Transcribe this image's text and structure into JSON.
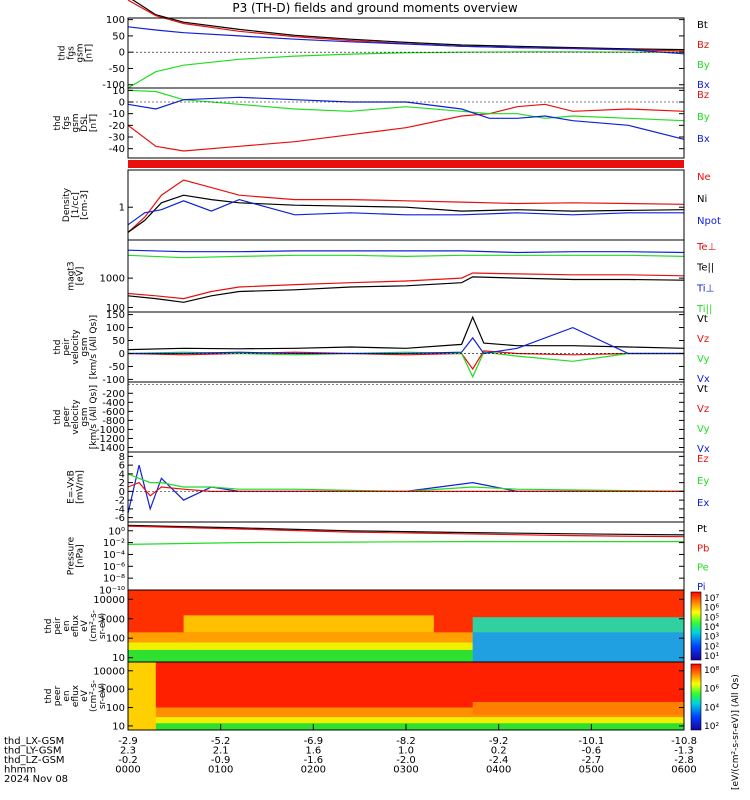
{
  "title": "P3 (TH-D) fields and ground moments overview",
  "colors": {
    "black": "#000000",
    "red": "#e8100e",
    "green": "#22dd22",
    "blue": "#1020d8"
  },
  "chart_data": [
    {
      "type": "line",
      "ylabel": [
        "thd",
        "fgs",
        "gsm",
        "[nT]"
      ],
      "ylim": [
        -110,
        105
      ],
      "yticks": [
        -100,
        -50,
        0,
        50,
        100
      ],
      "legend": [
        {
          "name": "Bt",
          "color": "black"
        },
        {
          "name": "Bz",
          "color": "red"
        },
        {
          "name": "By",
          "color": "green"
        },
        {
          "name": "Bx",
          "color": "blue"
        }
      ],
      "series": [
        {
          "name": "Bt",
          "color": "black",
          "x": [
            0,
            0.05,
            0.1,
            0.2,
            0.3,
            0.4,
            0.5,
            0.6,
            0.7,
            0.8,
            0.9,
            1.0
          ],
          "y": [
            170,
            115,
            92,
            70,
            52,
            40,
            30,
            22,
            18,
            14,
            10,
            8
          ]
        },
        {
          "name": "Bz",
          "color": "red",
          "x": [
            0,
            0.05,
            0.1,
            0.2,
            0.3,
            0.4,
            0.5,
            0.6,
            0.7,
            0.8,
            0.9,
            1.0
          ],
          "y": [
            160,
            112,
            88,
            64,
            48,
            36,
            26,
            18,
            14,
            11,
            7,
            4
          ]
        },
        {
          "name": "By",
          "color": "green",
          "x": [
            0,
            0.05,
            0.1,
            0.2,
            0.3,
            0.4,
            0.5,
            0.6,
            0.7,
            0.8,
            0.9,
            1.0
          ],
          "y": [
            -110,
            -60,
            -40,
            -22,
            -12,
            -6,
            -2,
            0,
            1,
            1,
            0,
            0
          ]
        },
        {
          "name": "Bx",
          "color": "blue",
          "x": [
            0,
            0.05,
            0.1,
            0.2,
            0.3,
            0.4,
            0.5,
            0.6,
            0.7,
            0.8,
            0.9,
            1.0
          ],
          "y": [
            78,
            68,
            60,
            50,
            40,
            32,
            25,
            18,
            14,
            12,
            8,
            -5
          ]
        }
      ]
    },
    {
      "type": "line",
      "ylabel": [
        "thd",
        "fgs",
        "gsm",
        "DSL",
        "[nT]"
      ],
      "ylim": [
        -48,
        12
      ],
      "yticks": [
        -40,
        -30,
        -20,
        -10,
        0,
        10
      ],
      "legend": [
        {
          "name": "Bz",
          "color": "red"
        },
        {
          "name": "By",
          "color": "green"
        },
        {
          "name": "Bx",
          "color": "blue"
        }
      ],
      "series": [
        {
          "name": "Bz",
          "color": "red",
          "x": [
            0,
            0.05,
            0.1,
            0.2,
            0.3,
            0.4,
            0.5,
            0.6,
            0.65,
            0.7,
            0.75,
            0.8,
            0.9,
            1.0
          ],
          "y": [
            -20,
            -38,
            -42,
            -38,
            -34,
            -28,
            -22,
            -12,
            -10,
            -4,
            -2,
            -8,
            -6,
            -8
          ]
        },
        {
          "name": "By",
          "color": "green",
          "x": [
            0,
            0.05,
            0.1,
            0.2,
            0.3,
            0.4,
            0.5,
            0.6,
            0.65,
            0.7,
            0.75,
            0.8,
            0.9,
            1.0
          ],
          "y": [
            10,
            9,
            2,
            -2,
            -6,
            -8,
            -4,
            -8,
            -10,
            -10,
            -14,
            -12,
            -14,
            -16
          ]
        },
        {
          "name": "Bx",
          "color": "blue",
          "x": [
            0,
            0.05,
            0.1,
            0.2,
            0.3,
            0.4,
            0.5,
            0.6,
            0.65,
            0.7,
            0.75,
            0.8,
            0.9,
            1.0
          ],
          "y": [
            -2,
            -6,
            2,
            4,
            2,
            0,
            0,
            -6,
            -14,
            -14,
            -12,
            -16,
            -20,
            -32
          ]
        }
      ]
    },
    {
      "type": "line",
      "ylabel": [
        "Density",
        "[1/cc]",
        "[cm-3]"
      ],
      "log": true,
      "ylim": [
        0.05,
        30
      ],
      "yticks": [
        1
      ],
      "legend": [
        {
          "name": "Ne",
          "color": "red"
        },
        {
          "name": "Ni",
          "color": "black"
        },
        {
          "name": "Npot",
          "color": "blue"
        }
      ],
      "series": [
        {
          "name": "Ne",
          "color": "red",
          "x": [
            0,
            0.03,
            0.06,
            0.1,
            0.15,
            0.2,
            0.3,
            0.4,
            0.5,
            0.6,
            0.7,
            0.8,
            0.9,
            1.0
          ],
          "y": [
            0.1,
            0.4,
            3,
            12,
            6,
            3,
            2,
            2,
            1.8,
            1.6,
            1.4,
            1.5,
            1.4,
            1.3
          ]
        },
        {
          "name": "Ni",
          "color": "black",
          "x": [
            0,
            0.03,
            0.06,
            0.1,
            0.15,
            0.2,
            0.3,
            0.4,
            0.5,
            0.6,
            0.7,
            0.8,
            0.9,
            1.0
          ],
          "y": [
            0.1,
            0.3,
            1.5,
            3,
            2,
            1.5,
            1.2,
            1.1,
            1.0,
            0.7,
            0.8,
            0.7,
            0.75,
            0.8
          ]
        },
        {
          "name": "Npot",
          "color": "blue",
          "x": [
            0,
            0.03,
            0.06,
            0.1,
            0.15,
            0.2,
            0.3,
            0.4,
            0.5,
            0.6,
            0.7,
            0.8,
            0.9,
            1.0
          ],
          "y": [
            0.2,
            0.6,
            0.8,
            1.8,
            0.7,
            2,
            0.5,
            0.6,
            0.5,
            0.5,
            0.6,
            0.5,
            0.6,
            0.6
          ]
        }
      ]
    },
    {
      "type": "line",
      "ylabel": [
        "magt3",
        "[eV]"
      ],
      "log": true,
      "ylim": [
        70,
        20000
      ],
      "yticks": [
        100,
        1000
      ],
      "legend": [
        {
          "name": "Te⊥",
          "color": "red"
        },
        {
          "name": "Te||",
          "color": "black"
        },
        {
          "name": "Ti⊥",
          "color": "blue"
        },
        {
          "name": "Ti||",
          "color": "green"
        }
      ],
      "series": [
        {
          "name": "Ti⊥",
          "color": "blue",
          "x": [
            0,
            0.1,
            0.2,
            0.3,
            0.4,
            0.5,
            0.6,
            0.7,
            0.8,
            0.9,
            1.0
          ],
          "y": [
            9000,
            8000,
            8000,
            8500,
            8500,
            8500,
            8500,
            7500,
            8000,
            8000,
            7500
          ]
        },
        {
          "name": "Ti||",
          "color": "green",
          "x": [
            0,
            0.1,
            0.2,
            0.3,
            0.4,
            0.5,
            0.6,
            0.7,
            0.8,
            0.9,
            1.0
          ],
          "y": [
            6000,
            5000,
            5500,
            6000,
            6000,
            5500,
            6000,
            6000,
            6000,
            6000,
            5500
          ]
        },
        {
          "name": "Te⊥",
          "color": "red",
          "x": [
            0,
            0.05,
            0.1,
            0.15,
            0.2,
            0.3,
            0.4,
            0.5,
            0.6,
            0.62,
            0.7,
            0.8,
            0.9,
            1.0
          ],
          "y": [
            300,
            250,
            200,
            350,
            500,
            600,
            700,
            800,
            1000,
            1500,
            1400,
            1300,
            1300,
            1200
          ]
        },
        {
          "name": "Te||",
          "color": "black",
          "x": [
            0,
            0.05,
            0.1,
            0.15,
            0.2,
            0.3,
            0.4,
            0.5,
            0.6,
            0.62,
            0.7,
            0.8,
            0.9,
            1.0
          ],
          "y": [
            250,
            200,
            150,
            250,
            350,
            400,
            500,
            550,
            700,
            1100,
            1000,
            900,
            900,
            850
          ]
        }
      ]
    },
    {
      "type": "line",
      "ylabel": [
        "thd",
        "peir",
        "velocity",
        "gsm",
        "[km/s (All Qs)]"
      ],
      "ylim": [
        -110,
        160
      ],
      "yticks": [
        -100,
        -50,
        0,
        50,
        100,
        150
      ],
      "legend": [
        {
          "name": "Vt",
          "color": "black"
        },
        {
          "name": "Vz",
          "color": "red"
        },
        {
          "name": "Vy",
          "color": "green"
        },
        {
          "name": "Vx",
          "color": "blue"
        }
      ],
      "series": [
        {
          "name": "Vt",
          "color": "black",
          "x": [
            0,
            0.1,
            0.2,
            0.3,
            0.4,
            0.5,
            0.6,
            0.62,
            0.64,
            0.7,
            0.8,
            0.9,
            1.0
          ],
          "y": [
            15,
            20,
            18,
            20,
            25,
            20,
            35,
            140,
            40,
            30,
            30,
            25,
            20
          ]
        },
        {
          "name": "Vz",
          "color": "red",
          "x": [
            0,
            0.1,
            0.2,
            0.3,
            0.4,
            0.5,
            0.6,
            0.62,
            0.64,
            0.7,
            0.8,
            0.9,
            1.0
          ],
          "y": [
            0,
            -5,
            0,
            5,
            0,
            -5,
            0,
            -60,
            10,
            0,
            -5,
            0,
            0
          ]
        },
        {
          "name": "Vy",
          "color": "green",
          "x": [
            0,
            0.1,
            0.2,
            0.3,
            0.4,
            0.5,
            0.6,
            0.62,
            0.64,
            0.7,
            0.8,
            0.9,
            1.0
          ],
          "y": [
            0,
            5,
            0,
            -5,
            0,
            5,
            0,
            -90,
            5,
            -10,
            -30,
            0,
            0
          ]
        },
        {
          "name": "Vx",
          "color": "blue",
          "x": [
            0,
            0.1,
            0.2,
            0.3,
            0.4,
            0.5,
            0.6,
            0.62,
            0.64,
            0.7,
            0.8,
            0.9,
            1.0
          ],
          "y": [
            0,
            0,
            5,
            0,
            0,
            0,
            5,
            60,
            0,
            20,
            100,
            0,
            0
          ]
        }
      ]
    },
    {
      "type": "line",
      "ylabel": [
        "thd",
        "peer",
        "velocity",
        "gsm",
        "[km/s (All Qs)]"
      ],
      "ylim": [
        -1500,
        50
      ],
      "yticks": [
        -200,
        -400,
        -600,
        -800,
        -1000,
        -1200,
        -1400
      ],
      "legend": [
        {
          "name": "Vt",
          "color": "black"
        },
        {
          "name": "Vz",
          "color": "red"
        },
        {
          "name": "Vy",
          "color": "green"
        },
        {
          "name": "Vx",
          "color": "blue"
        }
      ],
      "series": []
    },
    {
      "type": "line",
      "ylabel": [
        "E=-VxB",
        "[mV/m]"
      ],
      "ylim": [
        -7,
        9
      ],
      "yticks": [
        -6,
        -4,
        -2,
        0,
        2,
        4,
        6,
        8
      ],
      "legend": [
        {
          "name": "Ez",
          "color": "red"
        },
        {
          "name": "Ey",
          "color": "green"
        },
        {
          "name": "Ex",
          "color": "blue"
        }
      ],
      "series": [
        {
          "name": "Ex",
          "color": "blue",
          "x": [
            0,
            0.02,
            0.04,
            0.06,
            0.1,
            0.15,
            0.2,
            0.3,
            0.5,
            0.62,
            0.7,
            1.0
          ],
          "y": [
            -5,
            6,
            -4,
            3,
            -2,
            1,
            0,
            0,
            0,
            2,
            0,
            0
          ]
        },
        {
          "name": "Ey",
          "color": "green",
          "x": [
            0,
            0.02,
            0.04,
            0.06,
            0.1,
            0.15,
            0.2,
            0.3,
            0.5,
            0.62,
            0.7,
            1.0
          ],
          "y": [
            4,
            3,
            2,
            2,
            1,
            1,
            0.5,
            0.5,
            0,
            1,
            0.5,
            0
          ]
        },
        {
          "name": "Ez",
          "color": "red",
          "x": [
            0,
            0.02,
            0.04,
            0.06,
            0.1,
            0.15,
            0.2,
            0.3,
            0.5,
            0.62,
            0.7,
            1.0
          ],
          "y": [
            1,
            2,
            -1,
            1,
            0.5,
            0,
            0,
            0,
            0,
            0,
            0,
            0
          ]
        }
      ]
    },
    {
      "type": "line",
      "ylabel": [
        "Pressure",
        "[nPa]"
      ],
      "log": true,
      "ylim": [
        1e-10,
        30
      ],
      "yticks": [
        1,
        0.01,
        0.0001,
        1e-06,
        1e-08,
        1e-10
      ],
      "ytick_labels": [
        "10⁰",
        "10⁻²",
        "10⁻⁴",
        "10⁻⁶",
        "10⁻⁸",
        "10⁻¹⁰"
      ],
      "legend": [
        {
          "name": "Pt",
          "color": "black"
        },
        {
          "name": "Pb",
          "color": "red"
        },
        {
          "name": "Pe",
          "color": "green"
        },
        {
          "name": "Pi",
          "color": "blue"
        }
      ],
      "series": [
        {
          "name": "Pt",
          "color": "black",
          "x": [
            0,
            0.2,
            0.4,
            0.6,
            0.8,
            1.0
          ],
          "y": [
            8,
            3,
            1,
            0.5,
            0.3,
            0.2
          ]
        },
        {
          "name": "Pb",
          "color": "red",
          "x": [
            0,
            0.2,
            0.4,
            0.6,
            0.8,
            1.0
          ],
          "y": [
            6,
            2,
            0.6,
            0.3,
            0.15,
            0.1
          ]
        },
        {
          "name": "Pe",
          "color": "green",
          "x": [
            0,
            0.2,
            0.4,
            0.6,
            0.8,
            1.0
          ],
          "y": [
            0.005,
            0.01,
            0.012,
            0.015,
            0.015,
            0.015
          ]
        }
      ]
    },
    {
      "type": "heatmap",
      "ylabel": [
        "thd",
        "peir",
        "en",
        "eflux",
        "eV",
        "(cm²-s-",
        "sr-eV)"
      ],
      "log": true,
      "ylim": [
        6,
        30000
      ],
      "yticks": [
        10,
        100,
        1000,
        10000
      ]
    },
    {
      "type": "heatmap",
      "ylabel": [
        "thd",
        "peer",
        "en",
        "eflux",
        "eV",
        "(cm²-s-",
        "sr-eV)"
      ],
      "log": true,
      "ylim": [
        6,
        30000
      ],
      "yticks": [
        10,
        100,
        1000,
        10000
      ]
    }
  ],
  "colorbars": [
    {
      "ticks": [
        "10⁷",
        "10⁶",
        "10⁵",
        "10⁴",
        "10³",
        "10²",
        "10¹"
      ]
    },
    {
      "ticks": [
        "10⁸",
        "10⁶",
        "10⁴",
        "10²"
      ]
    }
  ],
  "colorbar_label": "[eV/(cm²-s-sr-eV)] (All Qs)",
  "xaxis": {
    "row_labels": [
      "thd_LX-GSM",
      "thd_LY-GSM",
      "thd_LZ-GSM",
      "hhmm",
      "2024 Nov 08"
    ],
    "columns": [
      [
        "-2.9",
        "2.3",
        "-0.2",
        "0000"
      ],
      [
        "-5.2",
        "2.1",
        "-0.9",
        "0100"
      ],
      [
        "-6.9",
        "1.6",
        "-1.6",
        "0200"
      ],
      [
        "-8.2",
        "1.0",
        "-2.0",
        "0300"
      ],
      [
        "-9.2",
        "0.2",
        "-2.4",
        "0400"
      ],
      [
        "-10.1",
        "-0.6",
        "-2.7",
        "0500"
      ],
      [
        "-10.8",
        "-1.3",
        "-2.8",
        "0600"
      ]
    ]
  }
}
